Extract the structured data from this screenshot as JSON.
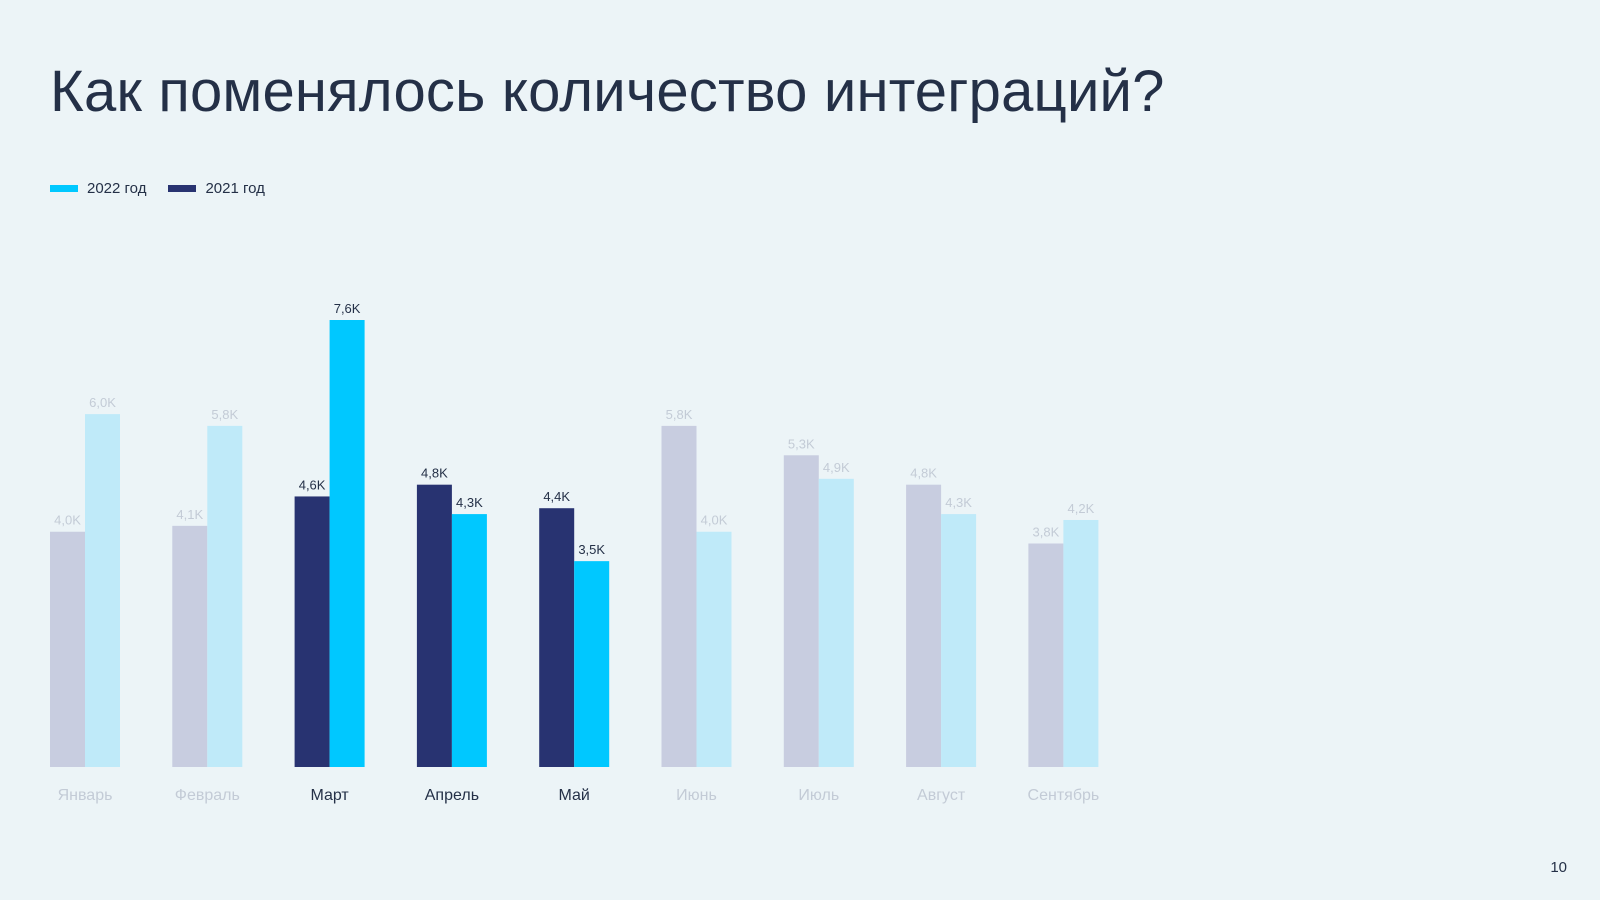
{
  "slide": {
    "title": "Как поменялось количество интеграций?",
    "page_number": "10"
  },
  "colors": {
    "series_2022": "#00c8ff",
    "series_2021": "#283371",
    "series_2022_muted": "#bfeaf9",
    "series_2021_muted": "#c8cde0",
    "text": "#243047",
    "text_muted": "#c3cbd6"
  },
  "chart_data": {
    "type": "bar",
    "title": "",
    "xlabel": "",
    "ylabel": "",
    "ylim": [
      0,
      7.6
    ],
    "grid": false,
    "legend_position": "top-left",
    "categories": [
      "Январь",
      "Февраль",
      "Март",
      "Апрель",
      "Май",
      "Июнь",
      "Июль",
      "Август",
      "Сентябрь"
    ],
    "highlighted": [
      false,
      false,
      true,
      true,
      true,
      false,
      false,
      false,
      false
    ],
    "series": [
      {
        "name": "2021 год",
        "values": [
          4.0,
          4.1,
          4.6,
          4.8,
          4.4,
          5.8,
          5.3,
          4.8,
          3.8
        ],
        "labels": [
          "4,0K",
          "4,1K",
          "4,6K",
          "4,8K",
          "4,4K",
          "5,8K",
          "5,3K",
          "4,8K",
          "3,8K"
        ]
      },
      {
        "name": "2022 год",
        "values": [
          6.0,
          5.8,
          7.6,
          4.3,
          3.5,
          4.0,
          4.9,
          4.3,
          4.2
        ],
        "labels": [
          "6,0K",
          "5,8K",
          "7,6K",
          "4,3K",
          "3,5K",
          "4,0K",
          "4,9K",
          "4,3K",
          "4,2K"
        ]
      }
    ],
    "legend": [
      {
        "name": "2022 год",
        "series_index": 1
      },
      {
        "name": "2021 год",
        "series_index": 0
      }
    ]
  }
}
